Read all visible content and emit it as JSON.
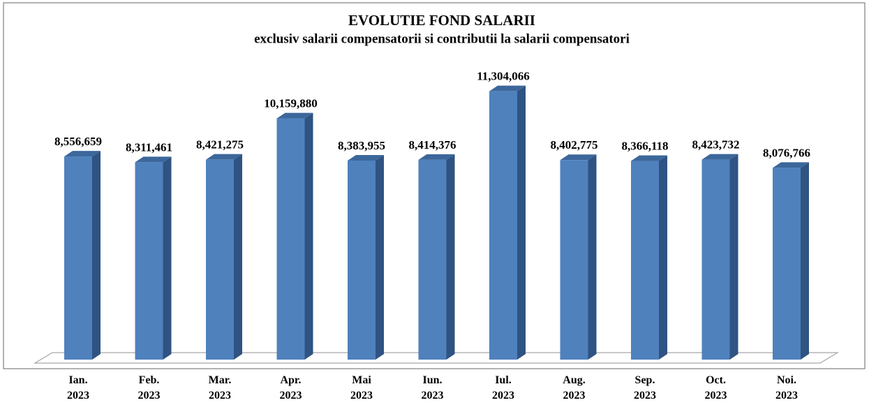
{
  "chart_data": {
    "type": "bar3d",
    "title": "EVOLUTIE FOND SALARII",
    "subtitle": "exclusiv salarii compensatorii si contributii la salarii compensatori",
    "categories": [
      [
        "Ian.",
        "2023"
      ],
      [
        "Feb.",
        "2023"
      ],
      [
        "Mar.",
        "2023"
      ],
      [
        "Apr.",
        "2023"
      ],
      [
        "Mai",
        "2023"
      ],
      [
        "Iun.",
        "2023"
      ],
      [
        "Iul.",
        "2023"
      ],
      [
        "Aug.",
        "2023"
      ],
      [
        "Sep.",
        "2023"
      ],
      [
        "Oct.",
        "2023"
      ],
      [
        "Noi.",
        "2023"
      ]
    ],
    "values": [
      8556659,
      8311461,
      8421275,
      10159880,
      8383955,
      8414376,
      11304066,
      8402775,
      8366118,
      8423732,
      8076766
    ],
    "value_labels": [
      "8,556,659",
      "8,311,461",
      "8,421,275",
      "10,159,880",
      "8,383,955",
      "8,414,376",
      "11,304,066",
      "8,402,775",
      "8,366,118",
      "8,423,732",
      "8,076,766"
    ],
    "color": "#4f81bd",
    "ylim": [
      0,
      12000000
    ]
  }
}
